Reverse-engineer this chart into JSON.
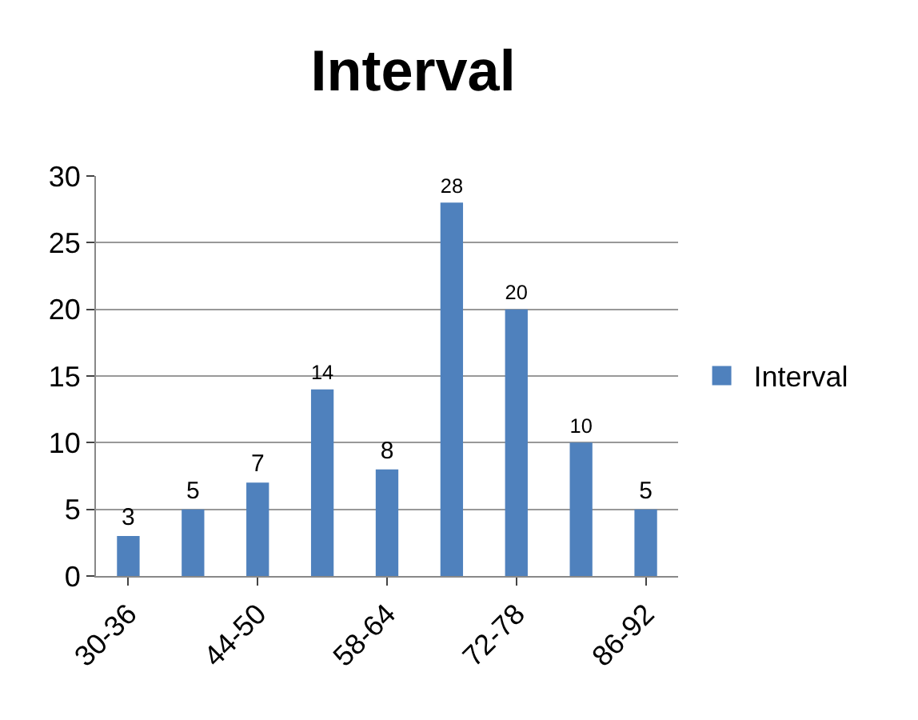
{
  "chart_data": {
    "type": "bar",
    "title": "Interval",
    "categories": [
      "30-36",
      null,
      "44-50",
      null,
      "58-64",
      null,
      "72-78",
      null,
      "86-92"
    ],
    "series": [
      {
        "name": "Interval",
        "color": "#4f81bd",
        "values": [
          3,
          5,
          7,
          14,
          8,
          28,
          20,
          10,
          5
        ]
      }
    ],
    "ylim": [
      0,
      30
    ],
    "yticks": [
      0,
      5,
      10,
      15,
      20,
      25,
      30
    ],
    "grid": "y",
    "legend": "right",
    "data_labels": true
  }
}
